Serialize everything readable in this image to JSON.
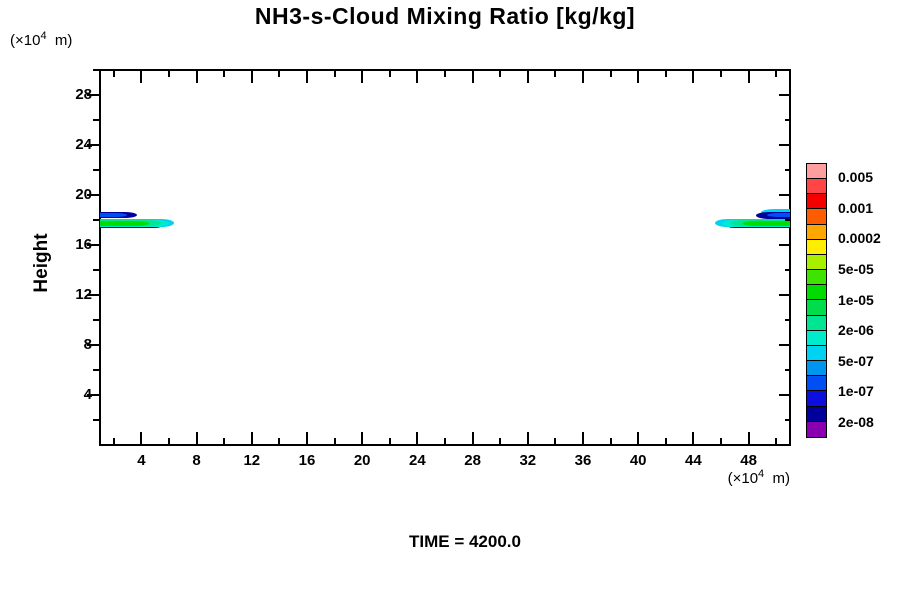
{
  "title": "NH3-s-Cloud Mixing Ratio [kg/kg]",
  "time_label": "TIME = 4200.0",
  "y_axis": {
    "label": "Height",
    "unit_prefix": "(×10",
    "unit_sup": "4",
    "unit_suffix": "  m)",
    "range": [
      0,
      30
    ],
    "major_ticks": [
      4,
      8,
      12,
      16,
      20,
      24,
      28
    ],
    "minor_ticks": [
      2,
      6,
      10,
      14,
      18,
      22,
      26,
      30
    ]
  },
  "x_axis": {
    "unit_prefix": "(×10",
    "unit_sup": "4",
    "unit_suffix": "  m)",
    "range": [
      1,
      51
    ],
    "major_ticks": [
      4,
      8,
      12,
      16,
      20,
      24,
      28,
      32,
      36,
      40,
      44,
      48
    ],
    "minor_ticks": [
      2,
      6,
      10,
      14,
      18,
      22,
      26,
      30,
      34,
      38,
      42,
      46,
      50
    ]
  },
  "colorbar": {
    "labels_top_to_bottom": [
      "0.005",
      "0.001",
      "0.0002",
      "5e-05",
      "1e-05",
      "2e-06",
      "5e-07",
      "1e-07",
      "2e-08"
    ],
    "cell_colors_top_to_bottom": [
      "#FF9E9E",
      "#FF4545",
      "#F50000",
      "#FF5C00",
      "#FFA600",
      "#FFEE00",
      "#A8F000",
      "#3FE302",
      "#00DC00",
      "#00DD4A",
      "#00E591",
      "#00EBCC",
      "#00D3F2",
      "#0096F0",
      "#004FF5",
      "#0E0EDE",
      "#00009B",
      "#8A00B0"
    ]
  },
  "chart_data": {
    "type": "heatmap",
    "title": "NH3-s-Cloud Mixing Ratio [kg/kg]",
    "xlabel": "(×10^4 m)",
    "ylabel": "Height (×10^4 m)",
    "time": 4200.0,
    "x_range": [
      1,
      51
    ],
    "y_range": [
      0,
      30
    ],
    "levels": [
      2e-08,
      5e-08,
      1e-07,
      2e-07,
      5e-07,
      1e-06,
      2e-06,
      5e-06,
      1e-05,
      2e-05,
      5e-05,
      0.0001,
      0.0002,
      0.0005,
      0.001,
      0.002,
      0.005
    ],
    "features": [
      {
        "name": "left cloud band",
        "x_extent": [
          1,
          6.3
        ],
        "height_extent": [
          17.4,
          18.1
        ],
        "core_value": "1e-05 (green core, cyan fringe)"
      },
      {
        "name": "left cloud upper blob",
        "x_extent": [
          1,
          3.6
        ],
        "height_extent": [
          18.1,
          18.7
        ],
        "core_value": "2e-07 (blue core, navy fringe)"
      },
      {
        "name": "right cloud band",
        "x_extent": [
          45.6,
          51
        ],
        "height_extent": [
          17.4,
          18.1
        ],
        "core_value": "1e-05 (green core, cyan fringe)"
      },
      {
        "name": "right cloud upper blob",
        "x_extent": [
          48.6,
          51
        ],
        "height_extent": [
          18.1,
          18.7
        ],
        "core_value": "2e-07 (blue core, navy fringe)"
      }
    ],
    "shapes": [
      {
        "x": [
          1,
          5.35
        ],
        "h": [
          17.33,
          17.48
        ],
        "color": "#00009B",
        "tip": "right"
      },
      {
        "x": [
          1,
          6.35
        ],
        "h": [
          17.42,
          18.1
        ],
        "color": "#00D3F2",
        "tip": "right"
      },
      {
        "x": [
          1,
          5.9
        ],
        "h": [
          17.47,
          18.04
        ],
        "color": "#00EBCC",
        "tip": "right"
      },
      {
        "x": [
          1,
          5.4
        ],
        "h": [
          17.52,
          17.99
        ],
        "color": "#00E591",
        "tip": "right"
      },
      {
        "x": [
          1,
          4.55
        ],
        "h": [
          17.56,
          17.95
        ],
        "color": "#00DC00",
        "tip": "right"
      },
      {
        "x": [
          1,
          3.65
        ],
        "h": [
          18.14,
          18.68
        ],
        "color": "#00009B",
        "tip": "right"
      },
      {
        "x": [
          1,
          2.95
        ],
        "h": [
          18.24,
          18.58
        ],
        "color": "#004FF5",
        "tip": "right"
      },
      {
        "x": [
          46.6,
          51
        ],
        "h": [
          17.33,
          17.48
        ],
        "color": "#00009B",
        "tip": "left"
      },
      {
        "x": [
          45.55,
          51
        ],
        "h": [
          17.42,
          18.1
        ],
        "color": "#00D3F2",
        "tip": "left"
      },
      {
        "x": [
          46.1,
          51
        ],
        "h": [
          17.47,
          18.04
        ],
        "color": "#00EBCC",
        "tip": "left"
      },
      {
        "x": [
          46.75,
          51
        ],
        "h": [
          17.52,
          17.99
        ],
        "color": "#00E591",
        "tip": "left"
      },
      {
        "x": [
          47.6,
          51
        ],
        "h": [
          17.56,
          17.95
        ],
        "color": "#00DC00",
        "tip": "left"
      },
      {
        "x": [
          48.9,
          51
        ],
        "h": [
          18.3,
          18.85
        ],
        "color": "#00D3F2",
        "tip": "left"
      },
      {
        "x": [
          48.55,
          51
        ],
        "h": [
          18.12,
          18.68
        ],
        "color": "#00009B",
        "tip": "left"
      },
      {
        "x": [
          49.35,
          51
        ],
        "h": [
          18.22,
          18.56
        ],
        "color": "#004FF5",
        "tip": "left"
      }
    ]
  }
}
